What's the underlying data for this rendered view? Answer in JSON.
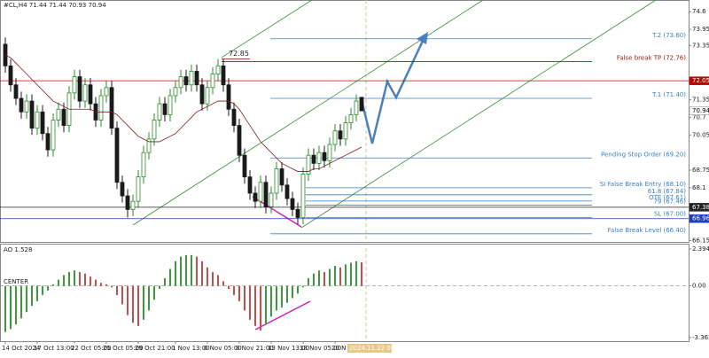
{
  "chart_data": {
    "type": "candlestick",
    "header": "#CL,H4  71.44 71.44 70.93 70.94",
    "categories": [
      "14 Oct 2024",
      null,
      null,
      null,
      null,
      null,
      "17 Oct 13:00",
      null,
      null,
      null,
      null,
      null,
      null,
      "22 Oct 05:00",
      null,
      null,
      null,
      null,
      null,
      "25 Oct 05:00",
      null,
      null,
      null,
      null,
      null,
      "29 Oct 21:00",
      null,
      null,
      null,
      null,
      null,
      null,
      "1 Nov 13:00",
      null,
      null,
      null,
      null,
      null,
      "6 Nov 05:00",
      null,
      null,
      null,
      null,
      null,
      "8 Nov 21:00",
      null,
      null,
      null,
      null,
      null,
      "13 Nov 13:00",
      null,
      null,
      null,
      null,
      null,
      "18 Nov 05:00",
      null,
      null,
      null,
      null,
      null,
      "20 N",
      null,
      null,
      null,
      null,
      null
    ],
    "open": [
      73.4,
      72.6,
      71.9,
      71.4,
      70.9,
      71.3,
      70.3,
      70.9,
      70.1,
      69.5,
      70.6,
      71.0,
      70.4,
      71.6,
      72.2,
      71.3,
      71.9,
      71.2,
      70.6,
      71.5,
      71.8,
      70.3,
      68.3,
      67.8,
      67.3,
      67.6,
      68.5,
      69.4,
      69.9,
      70.6,
      71.2,
      70.8,
      71.5,
      71.8,
      72.2,
      71.9,
      72.4,
      71.9,
      71.2,
      71.8,
      72.3,
      72.6,
      71.9,
      71.0,
      70.4,
      69.3,
      68.5,
      67.9,
      67.6,
      68.3,
      67.4,
      67.9,
      68.8,
      68.2,
      67.7,
      67.3,
      67.0,
      68.6,
      69.3,
      69.0,
      69.4,
      69.1,
      69.7,
      70.2,
      69.9,
      70.5,
      70.8,
      71.44
    ],
    "high": [
      73.65,
      72.85,
      72.15,
      71.65,
      71.55,
      71.55,
      71.15,
      71.15,
      70.35,
      70.85,
      71.25,
      71.25,
      71.85,
      72.45,
      72.45,
      72.15,
      72.15,
      71.45,
      71.75,
      72.05,
      72.05,
      70.55,
      68.55,
      68.05,
      67.85,
      68.75,
      69.65,
      70.15,
      70.85,
      71.45,
      71.45,
      71.75,
      72.05,
      72.45,
      72.45,
      72.65,
      72.65,
      72.15,
      72.05,
      72.55,
      72.85,
      72.85,
      72.15,
      71.25,
      70.65,
      69.55,
      68.75,
      68.15,
      68.55,
      68.55,
      68.15,
      69.05,
      69.05,
      68.45,
      67.95,
      67.55,
      68.85,
      69.55,
      69.55,
      69.65,
      69.65,
      69.95,
      70.45,
      70.45,
      70.75,
      71.05,
      71.55,
      71.44
    ],
    "low": [
      72.35,
      71.65,
      71.15,
      70.65,
      70.65,
      70.05,
      70.05,
      69.85,
      69.25,
      69.25,
      70.35,
      70.15,
      70.15,
      71.35,
      71.05,
      71.05,
      70.95,
      70.35,
      70.35,
      71.25,
      70.05,
      68.05,
      67.55,
      67.0,
      67.05,
      67.35,
      68.25,
      69.15,
      69.65,
      70.35,
      70.55,
      70.55,
      71.25,
      71.55,
      71.65,
      71.65,
      71.65,
      70.95,
      70.95,
      71.55,
      72.05,
      71.65,
      70.75,
      70.15,
      69.05,
      68.25,
      67.65,
      67.35,
      67.35,
      67.15,
      67.15,
      67.65,
      67.95,
      67.45,
      67.05,
      66.75,
      66.75,
      68.35,
      68.75,
      68.75,
      68.85,
      68.85,
      69.45,
      69.65,
      69.65,
      70.25,
      70.55,
      70.93
    ],
    "close": [
      72.6,
      71.9,
      71.4,
      70.9,
      71.3,
      70.3,
      70.9,
      70.1,
      69.5,
      70.6,
      71.0,
      70.4,
      71.6,
      72.2,
      71.3,
      71.9,
      71.2,
      70.6,
      71.5,
      71.8,
      70.3,
      68.3,
      67.8,
      67.3,
      67.6,
      68.5,
      69.4,
      69.9,
      70.6,
      71.2,
      70.8,
      71.5,
      71.8,
      72.2,
      71.9,
      72.4,
      71.9,
      71.2,
      71.8,
      72.3,
      72.6,
      71.9,
      71.0,
      70.4,
      69.3,
      68.5,
      67.9,
      67.6,
      68.3,
      67.4,
      67.9,
      68.8,
      68.2,
      67.7,
      67.3,
      67.0,
      68.6,
      69.3,
      69.0,
      69.4,
      69.1,
      69.7,
      70.2,
      69.9,
      70.5,
      70.8,
      71.3,
      70.94
    ],
    "up_color": "#2a8a2a",
    "down_color": "#1a1a1a",
    "ma": [
      73.0,
      72.9,
      72.7,
      72.5,
      72.3,
      72.1,
      71.9,
      71.7,
      71.5,
      71.3,
      71.2,
      71.1,
      71.0,
      71.0,
      71.0,
      71.0,
      71.0,
      70.9,
      70.9,
      70.9,
      70.9,
      70.8,
      70.6,
      70.4,
      70.2,
      70.0,
      69.9,
      69.8,
      69.8,
      69.8,
      69.9,
      70.0,
      70.1,
      70.3,
      70.5,
      70.7,
      70.9,
      71.0,
      71.1,
      71.2,
      71.3,
      71.3,
      71.3,
      71.2,
      71.0,
      70.7,
      70.4,
      70.1,
      69.8,
      69.6,
      69.4,
      69.2,
      69.0,
      68.9,
      68.8,
      68.7,
      68.7,
      68.7,
      68.8,
      68.8,
      68.9,
      69.0,
      69.1,
      69.2,
      69.3,
      69.4,
      69.5,
      69.6
    ],
    "ma_color": "#7a1f1f",
    "ylim": [
      66.1,
      75.0
    ],
    "yticks": [
      74.6,
      73.95,
      73.35,
      71.35,
      70.7,
      70.05,
      68.75,
      68.1,
      66.15
    ],
    "peak": 72.85,
    "levels": [
      {
        "label": "T.2 (73.60)",
        "value": 73.6,
        "color": "#3a7fbf"
      },
      {
        "label": "False break TP (72.76)",
        "value": 72.76,
        "color": "#8b1a1a"
      },
      {
        "label": "T.1 (71.40)",
        "value": 71.4,
        "color": "#3a7fbf"
      },
      {
        "label": "Pending Stop Order (69.20)",
        "value": 69.2,
        "color": "#3a7fbf"
      },
      {
        "label": "SI False Break Entry (68.10)",
        "value": 68.1,
        "color": "#3a7fbf"
      },
      {
        "label": "61.8 (67.84)",
        "value": 67.84,
        "color": "#3a7fbf"
      },
      {
        "label": "OTE (67.61)",
        "value": 67.61,
        "color": "#3a7fbf"
      },
      {
        "label": "79 (67.46)",
        "value": 67.46,
        "color": "#3a7fbf"
      },
      {
        "label": "SL (67.00)",
        "value": 67.0,
        "color": "#3a7fbf"
      },
      {
        "label": "False Break Level (66.40)",
        "value": 66.4,
        "color": "#3a7fbf"
      }
    ],
    "price_tags": [
      {
        "value": 72.05,
        "color": "#c00000"
      },
      {
        "value": 70.94,
        "color": "#ffffff"
      },
      {
        "value": 67.38,
        "color": "#222222"
      },
      {
        "value": 66.96,
        "color": "#1f3fbf"
      }
    ],
    "cursor_time": "2024.11.22 08:00",
    "ao": {
      "title": "AO 1.528",
      "center_label": "CENTER",
      "up_color": "#3c9a3c",
      "down_color": "#c0504d",
      "values": [
        -3.0,
        -2.8,
        -2.5,
        -2.1,
        -1.7,
        -1.3,
        -1.0,
        -0.6,
        -0.3,
        0.1,
        0.4,
        0.7,
        0.9,
        1.0,
        0.9,
        0.8,
        0.6,
        0.4,
        0.2,
        0.1,
        -0.1,
        -0.6,
        -1.2,
        -1.9,
        -2.4,
        -2.6,
        -2.2,
        -1.6,
        -0.9,
        -0.2,
        0.5,
        1.1,
        1.6,
        1.9,
        2.0,
        2.0,
        1.9,
        1.6,
        1.2,
        0.9,
        0.7,
        0.3,
        -0.2,
        -0.6,
        -1.0,
        -1.6,
        -2.2,
        -2.6,
        -2.9,
        -2.5,
        -2.0,
        -1.6,
        -1.4,
        -1.1,
        -0.8,
        -0.5,
        -0.1,
        0.5,
        0.8,
        1.0,
        0.9,
        1.1,
        1.3,
        1.2,
        1.4,
        1.5,
        1.6,
        1.528
      ],
      "ylim": [
        -3.59,
        2.68
      ],
      "yticks": [
        2.394,
        {
          "value": 0,
          "label": "0.00"
        },
        -3.362
      ]
    }
  }
}
